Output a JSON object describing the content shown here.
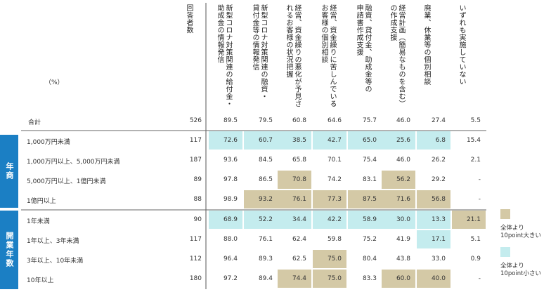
{
  "unit_label": "（%）",
  "header_n": "回答者数",
  "columns": [
    "新型コロナ対策関連の給付金・\n助成金の情報発信",
    "新型コロナ対策関連の融資・\n貸付金等の情報発信",
    "経営、資金繰りの悪化が予見さ\nれるお客様の状況把握",
    "経営、資金繰りに苦しんでいる\nお客様の個別相談",
    "融資、貸付金、助成金等の\n申請書作成支援",
    "経営計画（簡易なものを含む）\nの作成支援",
    "廃業、休業等の個別相談",
    "いずれも実施していない"
  ],
  "groups": [
    {
      "label": "年商",
      "color": "#1b7fc4"
    },
    {
      "label": "開業年数",
      "color": "#1b7fc4"
    }
  ],
  "legend": [
    {
      "text": "全体より\n10point大きい",
      "color": "#d4c9a6"
    },
    {
      "text": "全体より\n10point小さい",
      "color": "#c4ecee"
    }
  ],
  "colors": {
    "higher": "#d4c9a6",
    "lower": "#c4ecee",
    "side": "#1b7fc4"
  },
  "chart_data": {
    "type": "table",
    "rows": [
      {
        "label": "合計",
        "n": "526",
        "values": [
          "89.5",
          "79.5",
          "60.8",
          "64.6",
          "75.7",
          "46.0",
          "27.4",
          "5.5"
        ],
        "flags": [
          0,
          0,
          0,
          0,
          0,
          0,
          0,
          0
        ]
      },
      {
        "label": "1,000万円未満",
        "n": "117",
        "values": [
          "72.6",
          "60.7",
          "38.5",
          "42.7",
          "65.0",
          "25.6",
          "6.8",
          "15.4"
        ],
        "flags": [
          -1,
          -1,
          -1,
          -1,
          -1,
          -1,
          -1,
          0
        ]
      },
      {
        "label": "1,000万円以上、5,000万円未満",
        "n": "187",
        "values": [
          "93.6",
          "84.5",
          "65.8",
          "70.1",
          "75.4",
          "46.0",
          "26.2",
          "2.1"
        ],
        "flags": [
          0,
          0,
          0,
          0,
          0,
          0,
          0,
          0
        ]
      },
      {
        "label": "5,000万円以上、1億円未満",
        "n": "89",
        "values": [
          "97.8",
          "86.5",
          "70.8",
          "74.2",
          "83.1",
          "56.2",
          "29.2",
          "-"
        ],
        "flags": [
          0,
          0,
          1,
          0,
          0,
          1,
          0,
          0
        ]
      },
      {
        "label": "1億円以上",
        "n": "88",
        "values": [
          "98.9",
          "93.2",
          "76.1",
          "77.3",
          "87.5",
          "71.6",
          "56.8",
          "-"
        ],
        "flags": [
          0,
          1,
          1,
          1,
          1,
          1,
          1,
          0
        ]
      },
      {
        "label": "1年未満",
        "n": "90",
        "values": [
          "68.9",
          "52.2",
          "34.4",
          "42.2",
          "58.9",
          "30.0",
          "13.3",
          "21.1"
        ],
        "flags": [
          -1,
          -1,
          -1,
          -1,
          -1,
          -1,
          -1,
          1
        ]
      },
      {
        "label": "1年以上、3年未満",
        "n": "117",
        "values": [
          "88.0",
          "76.1",
          "62.4",
          "59.8",
          "75.2",
          "41.9",
          "17.1",
          "5.1"
        ],
        "flags": [
          0,
          0,
          0,
          0,
          0,
          0,
          -1,
          0
        ]
      },
      {
        "label": "3年以上、10年未満",
        "n": "112",
        "values": [
          "96.4",
          "89.3",
          "62.5",
          "75.0",
          "80.4",
          "43.8",
          "33.0",
          "0.9"
        ],
        "flags": [
          0,
          0,
          0,
          1,
          0,
          0,
          0,
          0
        ]
      },
      {
        "label": "10年以上",
        "n": "180",
        "values": [
          "97.2",
          "89.4",
          "74.4",
          "75.0",
          "83.3",
          "60.0",
          "40.0",
          "-"
        ],
        "flags": [
          0,
          0,
          1,
          1,
          0,
          1,
          1,
          0
        ]
      }
    ]
  }
}
